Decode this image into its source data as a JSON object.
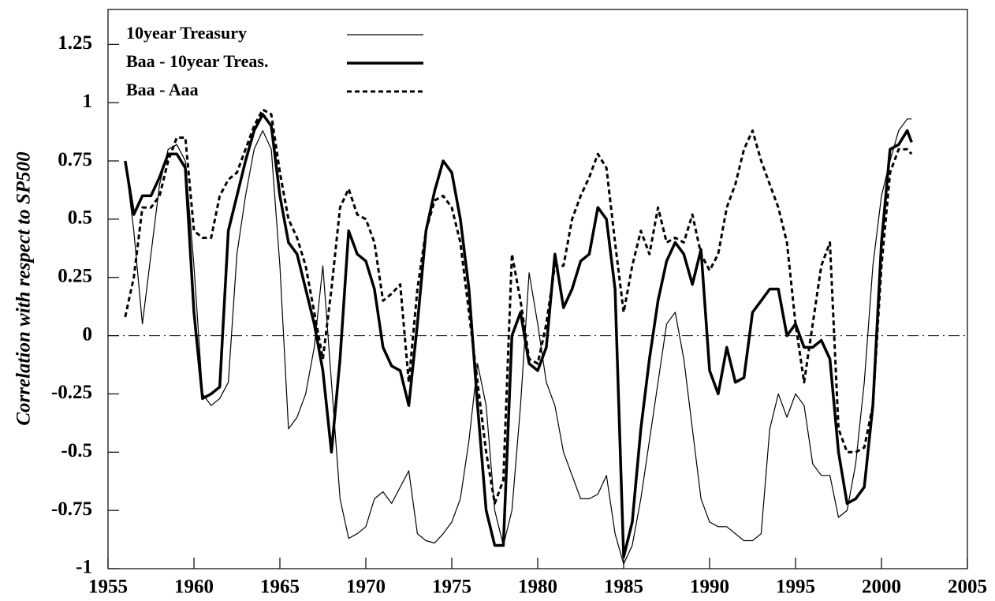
{
  "chart_data": {
    "type": "line",
    "ylabel": "Correlation with respect to SP500",
    "x": [
      1956,
      1956.5,
      1957,
      1957.5,
      1958,
      1958.5,
      1959,
      1959.5,
      1960,
      1960.5,
      1961,
      1961.5,
      1962,
      1962.5,
      1963,
      1963.5,
      1964,
      1964.5,
      1965,
      1965.5,
      1966,
      1966.5,
      1967,
      1967.5,
      1968,
      1968.5,
      1969,
      1969.5,
      1970,
      1970.5,
      1971,
      1971.5,
      1972,
      1972.5,
      1973,
      1973.5,
      1974,
      1974.5,
      1975,
      1975.5,
      1976,
      1976.5,
      1977,
      1977.5,
      1978,
      1978.5,
      1979,
      1979.5,
      1980,
      1980.5,
      1981,
      1981.5,
      1982,
      1982.5,
      1983,
      1983.5,
      1984,
      1984.5,
      1985,
      1985.5,
      1986,
      1986.5,
      1987,
      1987.5,
      1988,
      1988.5,
      1989,
      1989.5,
      1990,
      1990.5,
      1991,
      1991.5,
      1992,
      1992.5,
      1993,
      1993.5,
      1994,
      1994.5,
      1995,
      1995.5,
      1996,
      1996.5,
      1997,
      1997.5,
      1998,
      1998.5,
      1999,
      1999.5,
      2000,
      2000.5,
      2001,
      2001.5,
      2001.75
    ],
    "series": [
      {
        "name": "10year Treasury",
        "color": "#000000",
        "line_width": 1.2,
        "line_style": "solid",
        "values": [
          0.75,
          0.45,
          0.05,
          0.35,
          0.65,
          0.8,
          0.82,
          0.75,
          0.3,
          -0.25,
          -0.3,
          -0.27,
          -0.2,
          0.35,
          0.6,
          0.8,
          0.88,
          0.8,
          0.3,
          -0.4,
          -0.35,
          -0.25,
          -0.05,
          0.3,
          -0.2,
          -0.7,
          -0.87,
          -0.85,
          -0.82,
          -0.7,
          -0.67,
          -0.72,
          -0.65,
          -0.58,
          -0.85,
          -0.88,
          -0.89,
          -0.85,
          -0.8,
          -0.7,
          -0.45,
          -0.12,
          -0.3,
          -0.75,
          -0.9,
          -0.75,
          -0.3,
          0.27,
          0.05,
          -0.2,
          -0.3,
          -0.5,
          -0.6,
          -0.7,
          -0.7,
          -0.68,
          -0.6,
          -0.85,
          -0.98,
          -0.9,
          -0.7,
          -0.45,
          -0.2,
          0.05,
          0.1,
          -0.1,
          -0.4,
          -0.7,
          -0.8,
          -0.82,
          -0.82,
          -0.85,
          -0.88,
          -0.88,
          -0.85,
          -0.4,
          -0.25,
          -0.35,
          -0.25,
          -0.3,
          -0.55,
          -0.6,
          -0.6,
          -0.78,
          -0.75,
          -0.55,
          -0.2,
          0.3,
          0.6,
          0.75,
          0.88,
          0.93,
          0.93
        ]
      },
      {
        "name": "Baa - 10year Treas.",
        "color": "#000000",
        "line_width": 3.5,
        "line_style": "solid",
        "values": [
          0.75,
          0.52,
          0.6,
          0.6,
          0.68,
          0.78,
          0.78,
          0.72,
          0.1,
          -0.27,
          -0.25,
          -0.22,
          0.45,
          0.6,
          0.75,
          0.88,
          0.95,
          0.9,
          0.6,
          0.4,
          0.35,
          0.2,
          0.05,
          -0.15,
          -0.5,
          -0.1,
          0.45,
          0.35,
          0.32,
          0.2,
          -0.05,
          -0.13,
          -0.15,
          -0.3,
          0.05,
          0.45,
          0.62,
          0.75,
          0.7,
          0.5,
          0.2,
          -0.3,
          -0.75,
          -0.9,
          -0.9,
          0.0,
          0.1,
          -0.12,
          -0.15,
          -0.05,
          0.35,
          0.12,
          0.2,
          0.32,
          0.35,
          0.55,
          0.5,
          0.2,
          -0.95,
          -0.8,
          -0.4,
          -0.1,
          0.15,
          0.32,
          0.4,
          0.35,
          0.22,
          0.37,
          -0.15,
          -0.25,
          -0.05,
          -0.2,
          -0.18,
          0.1,
          0.15,
          0.2,
          0.2,
          0.0,
          0.05,
          -0.05,
          -0.05,
          -0.02,
          -0.1,
          -0.5,
          -0.72,
          -0.7,
          -0.65,
          -0.3,
          0.4,
          0.8,
          0.82,
          0.88,
          0.83
        ]
      },
      {
        "name": "Baa - Aaa",
        "color": "#000000",
        "line_width": 3,
        "line_style": "dotted",
        "values": [
          0.08,
          0.25,
          0.55,
          0.55,
          0.6,
          0.75,
          0.85,
          0.85,
          0.45,
          0.42,
          0.42,
          0.6,
          0.67,
          0.7,
          0.8,
          0.9,
          0.97,
          0.95,
          0.7,
          0.5,
          0.42,
          0.3,
          0.1,
          -0.1,
          0.2,
          0.55,
          0.63,
          0.52,
          0.5,
          0.4,
          0.15,
          0.18,
          0.22,
          -0.2,
          0.2,
          0.45,
          0.58,
          0.6,
          0.55,
          0.4,
          0.1,
          -0.2,
          -0.5,
          -0.72,
          -0.62,
          0.35,
          0.15,
          -0.1,
          -0.12,
          0.05,
          0.3,
          0.3,
          0.5,
          0.6,
          0.68,
          0.78,
          0.72,
          0.4,
          0.1,
          0.3,
          0.45,
          0.35,
          0.55,
          0.4,
          0.42,
          0.4,
          0.52,
          0.35,
          0.28,
          0.35,
          0.55,
          0.65,
          0.8,
          0.88,
          0.75,
          0.65,
          0.55,
          0.4,
          0.05,
          -0.2,
          0.05,
          0.3,
          0.4,
          -0.4,
          -0.5,
          -0.5,
          -0.48,
          -0.3,
          0.3,
          0.7,
          0.8,
          0.8,
          0.78
        ]
      }
    ],
    "xlim": [
      1955,
      2005
    ],
    "xticks": [
      1955,
      1960,
      1965,
      1970,
      1975,
      1980,
      1985,
      1990,
      1995,
      2000,
      2005
    ],
    "ylim": [
      -1,
      1.4
    ],
    "yticks": [
      -1,
      -0.75,
      -0.5,
      -0.25,
      0,
      0.25,
      0.5,
      0.75,
      1,
      1.25
    ],
    "reference_line": 0,
    "legend": "upper left",
    "grid": false
  }
}
